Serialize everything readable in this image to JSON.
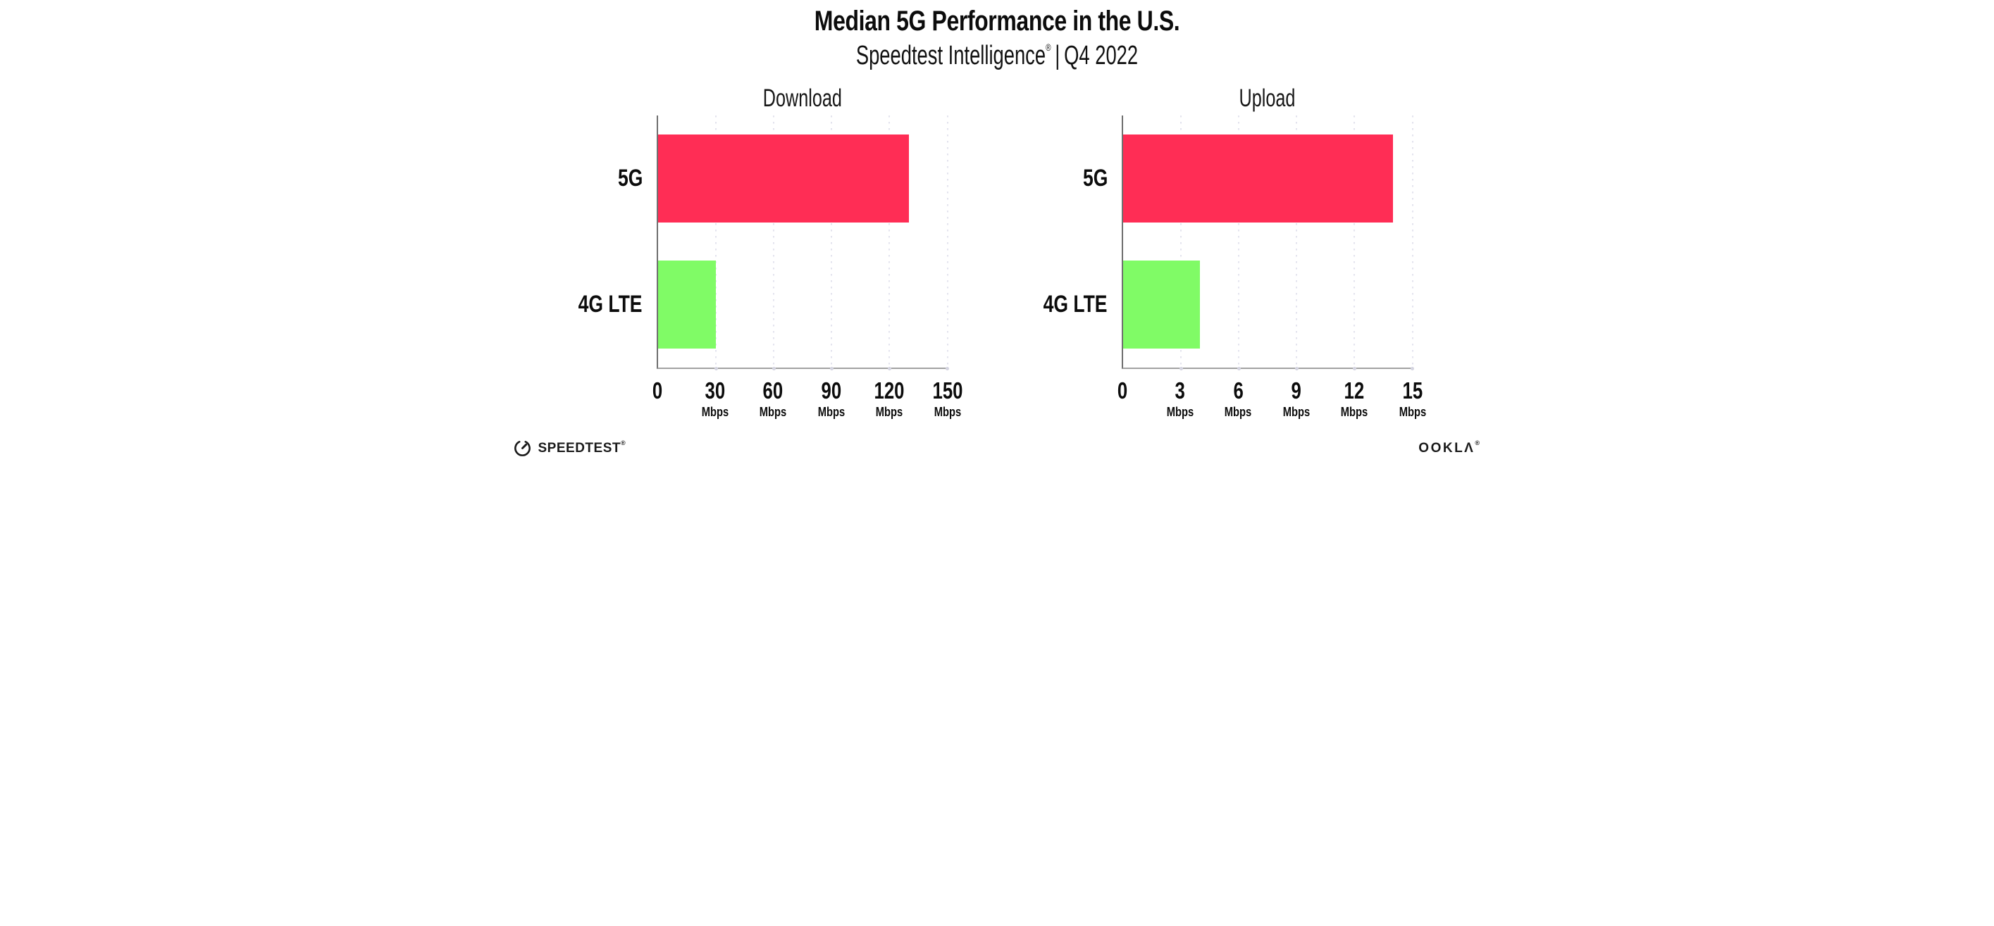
{
  "header": {
    "title": "Median 5G Performance in the U.S.",
    "subtitle_brand": "Speedtest Intelligence",
    "subtitle_reg_mark": "®",
    "subtitle_separator": "|",
    "subtitle_period": "Q4 2022"
  },
  "colors": {
    "series_colors": [
      "#FF2D55",
      "#80FB66"
    ],
    "axis_baseline": "#a2a2a2",
    "axis_spine": "#6f6f6f",
    "gridline_dot": "#e3e3ee",
    "text": "#0c0c0c"
  },
  "chart_data": [
    {
      "type": "bar",
      "orientation": "horizontal",
      "title": "Download",
      "categories": [
        "5G",
        "4G LTE"
      ],
      "values": [
        130,
        30
      ],
      "unit": "Mbps",
      "xlim": [
        0,
        150
      ],
      "xticks": [
        0,
        30,
        60,
        90,
        120,
        150
      ],
      "grid": "vertical dotted gridlines at each tick",
      "legend": "none"
    },
    {
      "type": "bar",
      "orientation": "horizontal",
      "title": "Upload",
      "categories": [
        "5G",
        "4G LTE"
      ],
      "values": [
        14,
        4
      ],
      "unit": "Mbps",
      "xlim": [
        0,
        15
      ],
      "xticks": [
        0,
        3,
        6,
        9,
        12,
        15
      ],
      "grid": "vertical dotted gridlines at each tick",
      "legend": "none"
    }
  ],
  "footer": {
    "speedtest_logo_text": "SPEEDTEST",
    "speedtest_trademark": "®",
    "ookla_logo_text": "OOKLΛ",
    "ookla_reg_mark": "®"
  }
}
